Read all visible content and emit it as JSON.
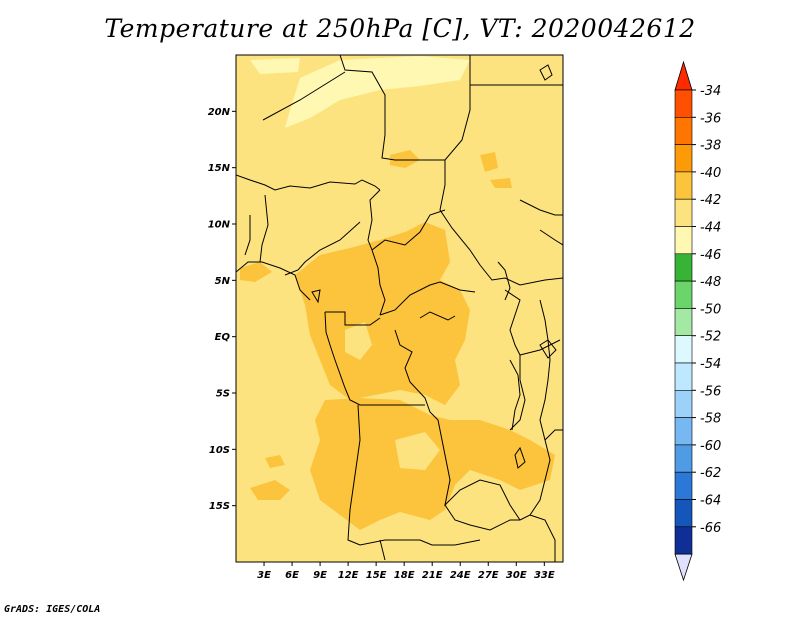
{
  "title": "Temperature at 250hPa [C], VT: 2020042612",
  "footer": "GrADS: IGES/COLA",
  "map": {
    "lon_ticks": [
      "3E",
      "6E",
      "9E",
      "12E",
      "15E",
      "18E",
      "21E",
      "24E",
      "27E",
      "30E",
      "33E"
    ],
    "lat_ticks": [
      "20N",
      "15N",
      "10N",
      "5N",
      "EQ",
      "5S",
      "10S",
      "15S"
    ],
    "lon_range": [
      0,
      35
    ],
    "lat_range": [
      -20,
      25
    ],
    "field_color": "#fde380",
    "field_colors": {
      "-42_to_-40": "#fef8b2",
      "-40_to_-38": "#fde380",
      "-38_to_-36": "#fcc33c"
    }
  },
  "colorbar": {
    "labels": [
      "-34",
      "-36",
      "-38",
      "-40",
      "-42",
      "-44",
      "-46",
      "-48",
      "-50",
      "-52",
      "-54",
      "-56",
      "-58",
      "-60",
      "-62",
      "-64",
      "-66"
    ],
    "colors": [
      "#fe5000",
      "#fe7600",
      "#fd9a08",
      "#fcc33c",
      "#fde380",
      "#fef8b2",
      "#37b436",
      "#6bd46b",
      "#a3e8a3",
      "#ddf8ff",
      "#bde8ff",
      "#9cd2fa",
      "#78b8f2",
      "#509be6",
      "#2b78d8",
      "#1556bb",
      "#0f2f96",
      "#08147a"
    ],
    "top_arrow_color": "#fe2b00",
    "bottom_arrow_color": "#e0e0ff"
  }
}
